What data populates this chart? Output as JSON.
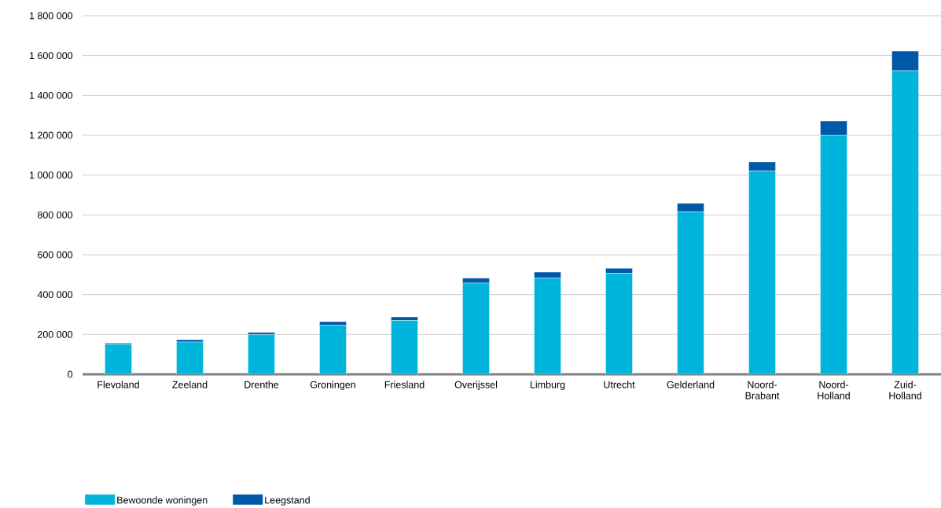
{
  "chart_data": {
    "type": "bar",
    "stacked": true,
    "categories": [
      "Flevoland",
      "Zeeland",
      "Drenthe",
      "Groningen",
      "Friesland",
      "Overijssel",
      "Limburg",
      "Utrecht",
      "Gelderland",
      "Noord-Brabant",
      "Noord-Holland",
      "Zuid-Holland"
    ],
    "series": [
      {
        "name": "Bewoonde woningen",
        "color": "#00b5dc",
        "values": [
          151000,
          162000,
          199000,
          246000,
          270000,
          458000,
          483000,
          507000,
          816000,
          1021000,
          1199000,
          1524000
        ]
      },
      {
        "name": "Leegstand",
        "color": "#0058a8",
        "values": [
          6000,
          12000,
          11000,
          18000,
          18000,
          25000,
          30000,
          25000,
          43000,
          45000,
          72000,
          98000
        ]
      }
    ],
    "ylim": [
      0,
      1800000
    ],
    "yticks": [
      0,
      {
        "value": 200000,
        "label": "200 000"
      },
      {
        "value": 400000,
        "label": "400 000"
      },
      {
        "value": 600000,
        "label": "600 000"
      },
      {
        "value": 800000,
        "label": "800 000"
      },
      {
        "value": 1000000,
        "label": "1 000 000"
      },
      {
        "value": 1200000,
        "label": "1 200 000"
      },
      {
        "value": 1400000,
        "label": "1 400 000"
      },
      {
        "value": 1600000,
        "label": "1 600 000"
      },
      {
        "value": 1800000,
        "label": "1 800 000"
      }
    ],
    "grid": "y",
    "legend": "bottom"
  }
}
